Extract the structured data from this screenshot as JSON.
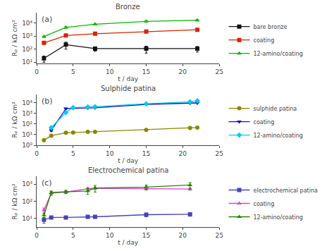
{
  "chart_data": [
    {
      "type": "line",
      "title": "Bronze",
      "annotations": [
        "(a)"
      ],
      "xlabel": "t / day",
      "ylabel": "Rₚ / kΩ cm²",
      "log": "y",
      "xlim": [
        0,
        25
      ],
      "xticks": [
        0,
        5,
        10,
        15,
        20,
        25
      ],
      "ylim": [
        8,
        60000
      ],
      "yticks": [
        {
          "value": 10,
          "label": "10¹"
        },
        {
          "value": 100,
          "label": "10²"
        },
        {
          "value": 1000,
          "label": "10³"
        },
        {
          "value": 10000,
          "label": "10⁴"
        }
      ],
      "grid": false,
      "legend": "lower right",
      "series": [
        {
          "name": "bare bronze",
          "color": "#111111",
          "marker": "square",
          "line_style": "solid",
          "x": [
            1,
            4,
            8,
            15,
            22
          ],
          "values": [
            20,
            220,
            110,
            110,
            110
          ],
          "yerr": [
            10,
            120,
            40,
            60,
            50
          ]
        },
        {
          "name": "coating",
          "color": "#dd2200",
          "marker": "square",
          "line_style": "solid",
          "x": [
            1,
            4,
            8,
            15,
            22
          ],
          "values": [
            300,
            1100,
            1500,
            2200,
            3000
          ],
          "yerr": [
            60,
            100,
            100,
            150,
            200
          ]
        },
        {
          "name": "12-amino/coating",
          "color": "#00bb00",
          "marker": "triangle-up",
          "line_style": "solid",
          "x": [
            1,
            4,
            8,
            15,
            22
          ],
          "values": [
            900,
            4500,
            8000,
            13000,
            16000
          ],
          "yerr": [
            100,
            600,
            800,
            1500,
            2000
          ]
        }
      ]
    },
    {
      "type": "line",
      "title": "Sulphide patina",
      "annotations": [
        "(b)"
      ],
      "xlabel": "t / day",
      "ylabel": "Rₚ / kΩ cm²",
      "log": "y",
      "xlim": [
        0,
        25
      ],
      "xticks": [
        0,
        5,
        10,
        15,
        20,
        25
      ],
      "ylim": [
        1,
        60000
      ],
      "yticks": [
        {
          "value": 1,
          "label": "10⁰"
        },
        {
          "value": 10,
          "label": "10¹"
        },
        {
          "value": 100,
          "label": "10²"
        },
        {
          "value": 1000,
          "label": "10³"
        },
        {
          "value": 10000,
          "label": "10⁴"
        }
      ],
      "grid": false,
      "legend": "lower right",
      "series": [
        {
          "name": "sulphide patina",
          "color": "#888800",
          "marker": "circle",
          "line_style": "solid",
          "x": [
            1,
            2,
            4,
            5,
            7,
            8,
            15,
            21,
            22
          ],
          "values": [
            3.0,
            8,
            15,
            16,
            18,
            18,
            28,
            43,
            46
          ],
          "yerr": [
            0.8,
            1,
            2,
            2,
            2,
            2,
            3,
            5,
            5
          ]
        },
        {
          "name": "coating",
          "color": "#1111cc",
          "marker": "triangle-down",
          "line_style": "solid",
          "x": [
            2,
            4,
            5,
            7,
            8,
            15,
            21,
            22
          ],
          "values": [
            25,
            2800,
            3000,
            3200,
            3300,
            7000,
            9000,
            9500
          ],
          "yerr": [
            5,
            300,
            300,
            300,
            300,
            600,
            800,
            900
          ]
        },
        {
          "name": "12-amino/coating",
          "color": "#00ccee",
          "marker": "diamond",
          "line_style": "solid",
          "x": [
            2,
            4,
            5,
            7,
            8,
            15,
            21,
            22
          ],
          "values": [
            45,
            1200,
            3500,
            4000,
            4200,
            8000,
            12000,
            15000
          ],
          "yerr": [
            8,
            200,
            400,
            400,
            400,
            800,
            1200,
            1500
          ]
        }
      ]
    },
    {
      "type": "line",
      "title": "Electrochemical patina",
      "annotations": [
        "(c)"
      ],
      "xlabel": "t / day",
      "ylabel": "Rₚ / kΩ cm²",
      "log": "y",
      "xlim": [
        0,
        25
      ],
      "xticks": [
        0,
        5,
        10,
        15,
        20,
        25
      ],
      "ylim": [
        3,
        3000
      ],
      "yticks": [
        {
          "value": 10,
          "label": "10¹"
        },
        {
          "value": 100,
          "label": "10²"
        },
        {
          "value": 1000,
          "label": "10³"
        }
      ],
      "grid": false,
      "legend": "lower right",
      "series": [
        {
          "name": "electrochemical patina",
          "color": "#4444bb",
          "marker": "square",
          "line_style": "solid",
          "x": [
            1,
            2,
            4,
            7,
            8,
            15,
            21
          ],
          "values": [
            8,
            11,
            11,
            12,
            12,
            16,
            17
          ],
          "yerr": [
            3,
            1,
            1,
            1,
            1,
            4,
            4
          ]
        },
        {
          "name": "coating",
          "color": "#dd44cc",
          "marker": "triangle-up",
          "line_style": "solid",
          "x": [
            1,
            2,
            4,
            7,
            8,
            15,
            21
          ],
          "values": [
            30,
            300,
            350,
            550,
            580,
            560,
            520
          ],
          "yerr": [
            10,
            80,
            60,
            80,
            80,
            80,
            80
          ]
        },
        {
          "name": "12-amino/coating",
          "color": "#228800",
          "marker": "triangle-up",
          "line_style": "solid",
          "x": [
            1,
            2,
            4,
            7,
            8,
            15,
            21
          ],
          "values": [
            15,
            320,
            360,
            400,
            600,
            680,
            900
          ],
          "yerr": [
            5,
            80,
            80,
            150,
            250,
            220,
            350
          ]
        }
      ]
    }
  ]
}
